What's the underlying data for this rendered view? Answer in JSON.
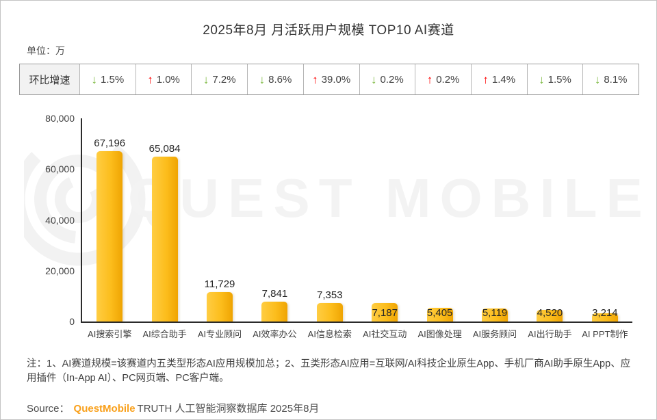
{
  "page": {
    "title": "2025年8月 月活跃用户规模 TOP10 AI赛道",
    "unit_label": "单位：万",
    "growth_row_header": "环比增速",
    "watermark_text": "QUEST MOBILE",
    "note": "注：1、AI赛道规模=该赛道内五类型形态AI应用规模加总；2、五类形态AI应用=互联网/AI科技企业原生App、手机厂商AI助手原生App、应用插件（In-App AI）、PC网页端、PC客户端。",
    "source_prefix": "Source：",
    "source_brand": "QuestMobile",
    "source_suffix": "TRUTH 人工智能洞察数据库 2025年8月"
  },
  "chart_data": {
    "type": "bar",
    "title": "2025年8月 月活跃用户规模 TOP10 AI赛道",
    "unit": "万",
    "categories": [
      "AI搜索引擎",
      "AI综合助手",
      "AI专业顾问",
      "AI效率办公",
      "AI信息检索",
      "AI社交互动",
      "AI图像处理",
      "AI服务顾问",
      "AI出行助手",
      "AI PPT制作"
    ],
    "values": [
      67196,
      65084,
      11729,
      7841,
      7353,
      7187,
      5405,
      5119,
      4520,
      3214
    ],
    "value_labels": [
      "67,196",
      "65,084",
      "11,729",
      "7,841",
      "7,353",
      "7,187",
      "5,405",
      "5,119",
      "4,520",
      "3,214"
    ],
    "mom_growth": [
      {
        "dir": "down",
        "value": "1.5%"
      },
      {
        "dir": "up",
        "value": "1.0%"
      },
      {
        "dir": "down",
        "value": "7.2%"
      },
      {
        "dir": "down",
        "value": "8.6%"
      },
      {
        "dir": "up",
        "value": "39.0%"
      },
      {
        "dir": "down",
        "value": "0.2%"
      },
      {
        "dir": "up",
        "value": "0.2%"
      },
      {
        "dir": "up",
        "value": "1.4%"
      },
      {
        "dir": "down",
        "value": "1.5%"
      },
      {
        "dir": "down",
        "value": "8.1%"
      }
    ],
    "xlabel": "",
    "ylabel": "",
    "ylim": [
      0,
      80000
    ],
    "yticks": [
      "80,000",
      "60,000",
      "40,000",
      "20,000",
      "0"
    ],
    "grid": false,
    "legend": false,
    "label_inside": [
      false,
      false,
      false,
      false,
      false,
      true,
      true,
      true,
      true,
      true
    ],
    "colors": {
      "bar_light": "#FFCD43",
      "bar_dark": "#EFA402",
      "up_arrow": "#FE0000",
      "down_arrow": "#76B637",
      "brand_orange": "#F9A01B",
      "watermark": "#f3f3f3"
    }
  }
}
